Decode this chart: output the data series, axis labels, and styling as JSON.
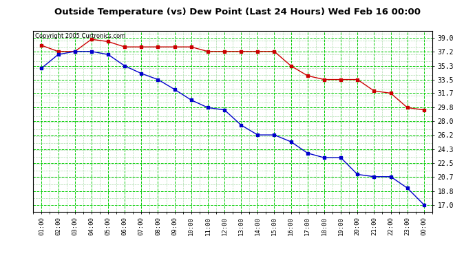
{
  "title": "Outside Temperature (vs) Dew Point (Last 24 Hours) Wed Feb 16 00:00",
  "copyright": "Copyright 2005 Curtronics.com",
  "x_labels": [
    "01:00",
    "02:00",
    "03:00",
    "04:00",
    "05:00",
    "06:00",
    "07:00",
    "08:00",
    "09:00",
    "10:00",
    "11:00",
    "12:00",
    "13:00",
    "14:00",
    "15:00",
    "16:00",
    "17:00",
    "18:00",
    "19:00",
    "20:00",
    "21:00",
    "22:00",
    "23:00",
    "00:00"
  ],
  "temp_data": [
    38.0,
    37.2,
    37.2,
    38.8,
    38.5,
    37.8,
    37.8,
    37.8,
    37.8,
    37.8,
    37.2,
    37.2,
    37.2,
    37.2,
    37.2,
    35.3,
    34.0,
    33.5,
    33.5,
    33.5,
    32.0,
    31.7,
    29.8,
    29.5
  ],
  "dew_data": [
    35.0,
    36.8,
    37.2,
    37.2,
    36.8,
    35.3,
    34.3,
    33.5,
    32.2,
    30.8,
    29.8,
    29.5,
    27.5,
    26.2,
    26.2,
    25.3,
    23.8,
    23.2,
    23.2,
    21.0,
    20.7,
    20.7,
    19.2,
    17.0
  ],
  "temp_color": "#cc0000",
  "dew_color": "#0000cc",
  "bg_color": "#ffffff",
  "plot_bg": "#ffffff",
  "grid_color": "#00cc00",
  "grid_color_minor": "#88cc88",
  "title_fontsize": 10,
  "yticks": [
    17.0,
    18.8,
    20.7,
    22.5,
    24.3,
    26.2,
    28.0,
    29.8,
    31.7,
    33.5,
    35.3,
    37.2,
    39.0
  ],
  "ymin": 16.1,
  "ymax": 39.9
}
